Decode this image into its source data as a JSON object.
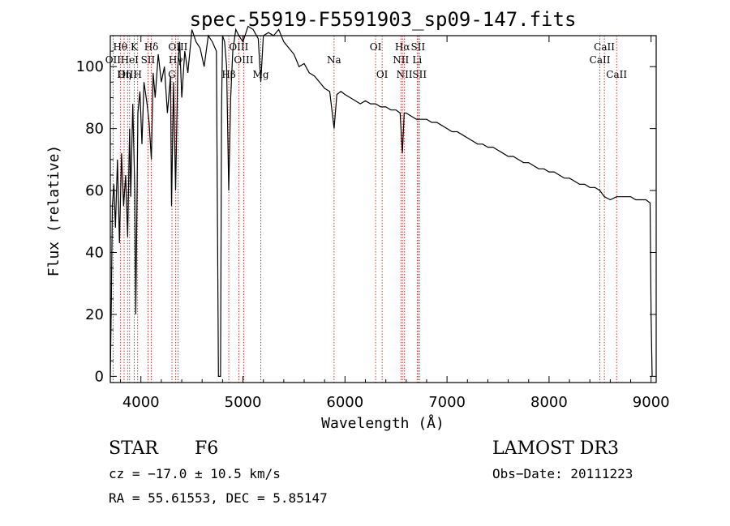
{
  "chart_data": {
    "type": "line",
    "title": "spec-55919-F5591903_sp09-147.fits",
    "xlabel": "Wavelength (Å)",
    "ylabel": "Flux (relative)",
    "xlim": [
      3700,
      9050
    ],
    "ylim": [
      -2,
      110
    ],
    "x_ticks": [
      4000,
      5000,
      6000,
      7000,
      8000,
      9000
    ],
    "y_ticks": [
      0,
      20,
      40,
      60,
      80,
      100
    ],
    "grid": false,
    "series": [
      {
        "name": "flux",
        "x": [
          3700,
          3710,
          3720,
          3735,
          3750,
          3770,
          3790,
          3810,
          3830,
          3850,
          3870,
          3889,
          3900,
          3920,
          3940,
          3950,
          3970,
          3990,
          4010,
          4030,
          4060,
          4080,
          4102,
          4120,
          4140,
          4170,
          4200,
          4230,
          4260,
          4290,
          4300,
          4320,
          4340,
          4361,
          4380,
          4400,
          4430,
          4460,
          4500,
          4540,
          4580,
          4620,
          4660,
          4700,
          4740,
          4760,
          4780,
          4790,
          4800,
          4820,
          4840,
          4861,
          4880,
          4900,
          4930,
          4960,
          5000,
          5050,
          5100,
          5150,
          5175,
          5200,
          5250,
          5300,
          5350,
          5400,
          5450,
          5500,
          5550,
          5600,
          5650,
          5700,
          5750,
          5800,
          5850,
          5893,
          5920,
          5960,
          6000,
          6050,
          6100,
          6150,
          6200,
          6250,
          6300,
          6350,
          6400,
          6450,
          6500,
          6540,
          6563,
          6580,
          6600,
          6650,
          6700,
          6750,
          6800,
          6850,
          6900,
          6950,
          7000,
          7050,
          7100,
          7150,
          7200,
          7250,
          7300,
          7350,
          7400,
          7450,
          7500,
          7550,
          7600,
          7650,
          7700,
          7750,
          7800,
          7850,
          7900,
          7950,
          8000,
          8050,
          8100,
          8150,
          8200,
          8250,
          8300,
          8350,
          8400,
          8450,
          8498,
          8542,
          8600,
          8662,
          8700,
          8750,
          8800,
          8850,
          8900,
          8950,
          8990,
          9000,
          9010
        ],
        "values": [
          0,
          25,
          55,
          62,
          48,
          70,
          43,
          72,
          55,
          65,
          45,
          80,
          58,
          88,
          60,
          20,
          85,
          92,
          75,
          95,
          88,
          82,
          70,
          98,
          90,
          104,
          95,
          100,
          85,
          97,
          55,
          95,
          60,
          100,
          108,
          90,
          105,
          98,
          112,
          108,
          106,
          100,
          110,
          108,
          105,
          0,
          0,
          85,
          110,
          108,
          100,
          60,
          90,
          105,
          112,
          110,
          108,
          113,
          112,
          109,
          95,
          110,
          111,
          110,
          112,
          108,
          106,
          104,
          100,
          101,
          98,
          97,
          95,
          93,
          92,
          80,
          91,
          92,
          91,
          90,
          89,
          88,
          89,
          88,
          88,
          87,
          87,
          86,
          86,
          85,
          72,
          85,
          85,
          84,
          83,
          83,
          83,
          82,
          82,
          81,
          80,
          79,
          79,
          78,
          77,
          76,
          75,
          75,
          74,
          74,
          73,
          72,
          71,
          71,
          70,
          69,
          69,
          68,
          67,
          67,
          66,
          66,
          65,
          64,
          64,
          63,
          62,
          62,
          61,
          61,
          60,
          58,
          57,
          58,
          58,
          58,
          58,
          57,
          57,
          57,
          56,
          20,
          0
        ]
      }
    ],
    "line_markers": [
      {
        "label": "Hθ",
        "x": 3798,
        "row": 1
      },
      {
        "label": "K",
        "x": 3934,
        "row": 1
      },
      {
        "label": "Hδ",
        "x": 4102,
        "row": 1
      },
      {
        "label": "OII",
        "x": 3727,
        "row": 2
      },
      {
        "label": "HeI",
        "x": 3889,
        "row": 2
      },
      {
        "label": "SII",
        "x": 4069,
        "row": 2
      },
      {
        "label": "OIII",
        "x": 4363,
        "row": 1
      },
      {
        "label": "Hγ",
        "x": 4341,
        "row": 2
      },
      {
        "label": "G",
        "x": 4304,
        "row": 3
      },
      {
        "label": "OIII",
        "x": 3869,
        "row": 3
      },
      {
        "label": "Hη",
        "x": 3835,
        "row": 3
      },
      {
        "label": "H",
        "x": 3968,
        "row": 3
      },
      {
        "label": "OIII",
        "x": 4959,
        "row": 1
      },
      {
        "label": "OIII",
        "x": 5007,
        "row": 2
      },
      {
        "label": "Hβ",
        "x": 4861,
        "row": 3
      },
      {
        "label": "Mg",
        "x": 5175,
        "row": 3
      },
      {
        "label": "Na",
        "x": 5893,
        "row": 2
      },
      {
        "label": "OI",
        "x": 6300,
        "row": 1
      },
      {
        "label": "OI",
        "x": 6364,
        "row": 3
      },
      {
        "label": "Hα",
        "x": 6563,
        "row": 1
      },
      {
        "label": "SII",
        "x": 6716,
        "row": 1
      },
      {
        "label": "NII",
        "x": 6548,
        "row": 2
      },
      {
        "label": "Li",
        "x": 6707,
        "row": 2
      },
      {
        "label": "NII",
        "x": 6583,
        "row": 3
      },
      {
        "label": "SII",
        "x": 6731,
        "row": 3
      },
      {
        "label": "CaII",
        "x": 8542,
        "row": 1
      },
      {
        "label": "CaII",
        "x": 8498,
        "row": 2
      },
      {
        "label": "CaII",
        "x": 8662,
        "row": 3
      }
    ]
  },
  "info": {
    "object_class": "STAR",
    "subclass": "F6",
    "survey": "LAMOST DR3",
    "cz": "cz = −17.0 ± 10.5 km/s",
    "obs_date": "Obs−Date: 20111223",
    "coords": "RA =  55.61553, DEC =   5.85147"
  },
  "colors": {
    "spectrum": "#000000",
    "marker_line": "#cc0000",
    "axis": "#000000"
  }
}
